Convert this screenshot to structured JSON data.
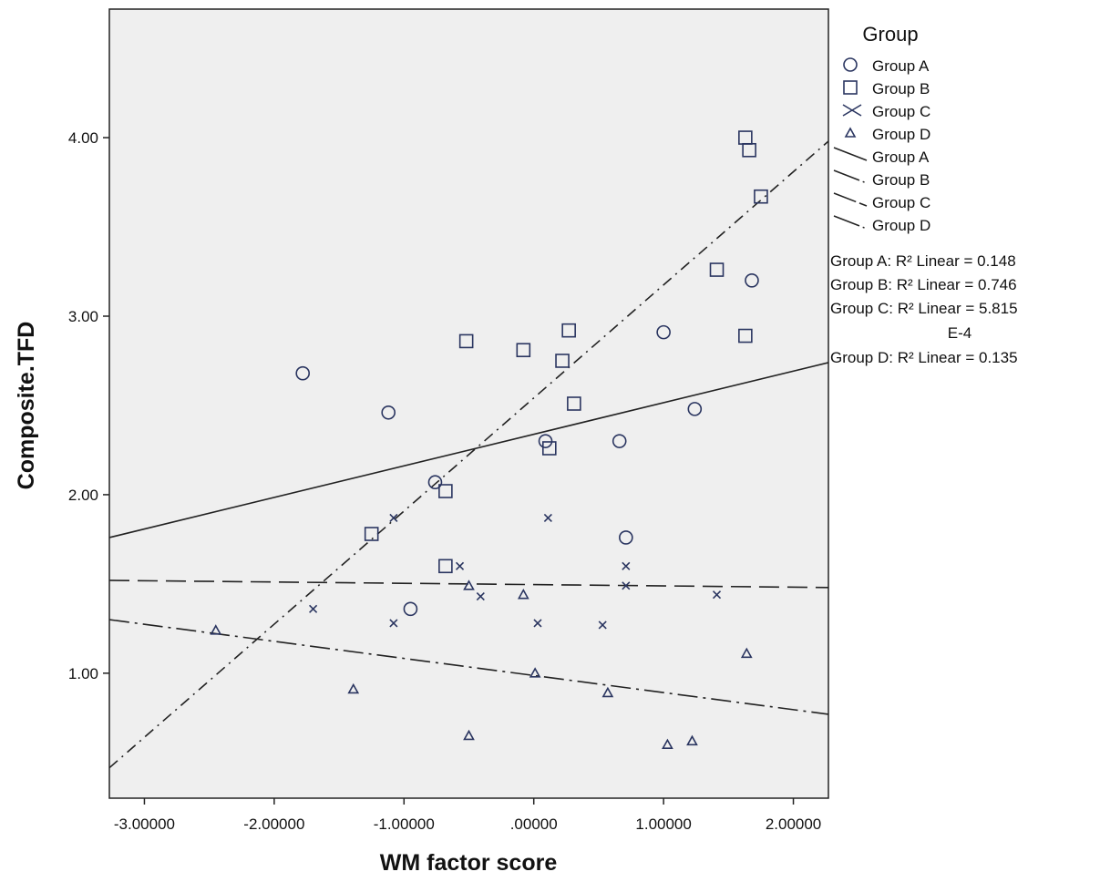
{
  "chart_data": {
    "type": "scatter",
    "xlabel": "WM factor score",
    "ylabel": "Composite.TFD",
    "xlim": [
      -3.27,
      2.27
    ],
    "ylim": [
      0.3,
      4.72
    ],
    "x_ticks": [
      -3,
      -2,
      -1,
      0,
      1,
      2
    ],
    "x_tick_labels": [
      "-3.00000",
      "-2.00000",
      "-1.00000",
      ".00000",
      "1.00000",
      "2.00000"
    ],
    "y_ticks": [
      1,
      2,
      3,
      4
    ],
    "y_tick_labels": [
      "1.00",
      "2.00",
      "3.00",
      "4.00"
    ],
    "grid": false,
    "legend_placement": "right",
    "legend_title": "Group",
    "series": [
      {
        "name": "Group A",
        "marker": "circle",
        "line_style": "solid",
        "points": [
          [
            -1.78,
            2.68
          ],
          [
            -1.12,
            2.46
          ],
          [
            -0.76,
            2.07
          ],
          [
            -0.95,
            1.36
          ],
          [
            0.09,
            2.3
          ],
          [
            0.66,
            2.3
          ],
          [
            0.71,
            1.76
          ],
          [
            1.0,
            2.91
          ],
          [
            1.24,
            2.48
          ],
          [
            1.68,
            3.2
          ]
        ],
        "fit_line": [
          [
            -3.27,
            1.76
          ],
          [
            2.27,
            2.74
          ]
        ],
        "r2_label": "Group A: R² Linear = 0.148"
      },
      {
        "name": "Group B",
        "marker": "square",
        "line_style": "dash-dot",
        "points": [
          [
            -1.25,
            1.78
          ],
          [
            -0.68,
            2.02
          ],
          [
            -0.68,
            1.6
          ],
          [
            -0.52,
            2.86
          ],
          [
            -0.08,
            2.81
          ],
          [
            0.22,
            2.75
          ],
          [
            0.27,
            2.92
          ],
          [
            0.31,
            2.51
          ],
          [
            0.12,
            2.26
          ],
          [
            1.41,
            3.26
          ],
          [
            1.63,
            2.89
          ],
          [
            1.63,
            4.0
          ],
          [
            1.66,
            3.93
          ],
          [
            1.75,
            3.67
          ]
        ],
        "fit_line": [
          [
            -3.27,
            0.47
          ],
          [
            2.27,
            3.98
          ]
        ],
        "r2_label": "Group B: R² Linear = 0.746"
      },
      {
        "name": "Group C",
        "marker": "x",
        "line_style": "dashed",
        "points": [
          [
            -1.08,
            1.87
          ],
          [
            -1.7,
            1.36
          ],
          [
            -1.08,
            1.28
          ],
          [
            -0.57,
            1.6
          ],
          [
            -0.41,
            1.43
          ],
          [
            0.11,
            1.87
          ],
          [
            0.03,
            1.28
          ],
          [
            0.53,
            1.27
          ],
          [
            0.71,
            1.6
          ],
          [
            0.71,
            1.49
          ],
          [
            1.41,
            1.44
          ]
        ],
        "fit_line": [
          [
            -3.27,
            1.52
          ],
          [
            2.27,
            1.48
          ]
        ],
        "r2_label_line1": "Group C: R² Linear = 5.815",
        "r2_label_line2": "E-4"
      },
      {
        "name": "Group D",
        "marker": "triangle",
        "line_style": "long-dash-dot",
        "points": [
          [
            -2.45,
            1.24
          ],
          [
            -1.39,
            0.91
          ],
          [
            -0.5,
            1.49
          ],
          [
            -0.5,
            0.65
          ],
          [
            -0.08,
            1.44
          ],
          [
            0.01,
            1.0
          ],
          [
            0.57,
            0.89
          ],
          [
            1.03,
            0.6
          ],
          [
            1.22,
            0.62
          ],
          [
            1.64,
            1.11
          ]
        ],
        "fit_line": [
          [
            -3.27,
            1.3
          ],
          [
            2.27,
            0.77
          ]
        ],
        "r2_label": "Group D: R² Linear = 0.135"
      }
    ]
  }
}
